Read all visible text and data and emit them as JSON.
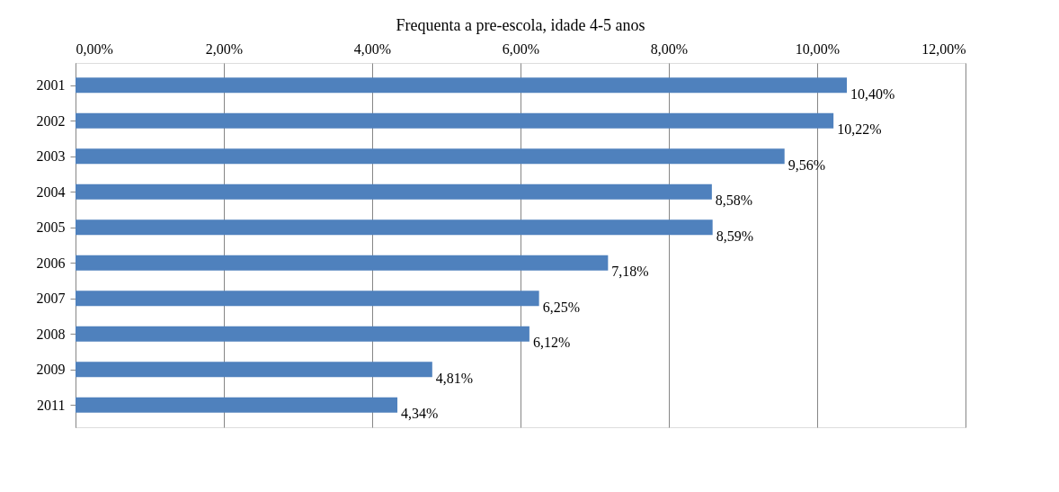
{
  "chart_data": {
    "type": "bar",
    "orientation": "horizontal",
    "title": "Frequenta a pre-escola, idade 4-5 anos",
    "categories": [
      "2001",
      "2002",
      "2003",
      "2004",
      "2005",
      "2006",
      "2007",
      "2008",
      "2009",
      "2011"
    ],
    "values": [
      10.4,
      10.22,
      9.56,
      8.58,
      8.59,
      7.18,
      6.25,
      6.12,
      4.81,
      4.34
    ],
    "value_labels": [
      "10,40%",
      "10,22%",
      "9,56%",
      "8,58%",
      "8,59%",
      "7,18%",
      "6,25%",
      "6,12%",
      "4,81%",
      "4,34%"
    ],
    "color": "#4f81bd",
    "xlim": [
      0,
      12
    ],
    "xticks": [
      {
        "value": 0,
        "label": "0,00%"
      },
      {
        "value": 2,
        "label": "2,00%"
      },
      {
        "value": 4,
        "label": "4,00%"
      },
      {
        "value": 6,
        "label": "6,00%"
      },
      {
        "value": 8,
        "label": "8,00%"
      },
      {
        "value": 10,
        "label": "10,00%"
      },
      {
        "value": 12,
        "label": "12,00%"
      }
    ],
    "grid": "x"
  }
}
